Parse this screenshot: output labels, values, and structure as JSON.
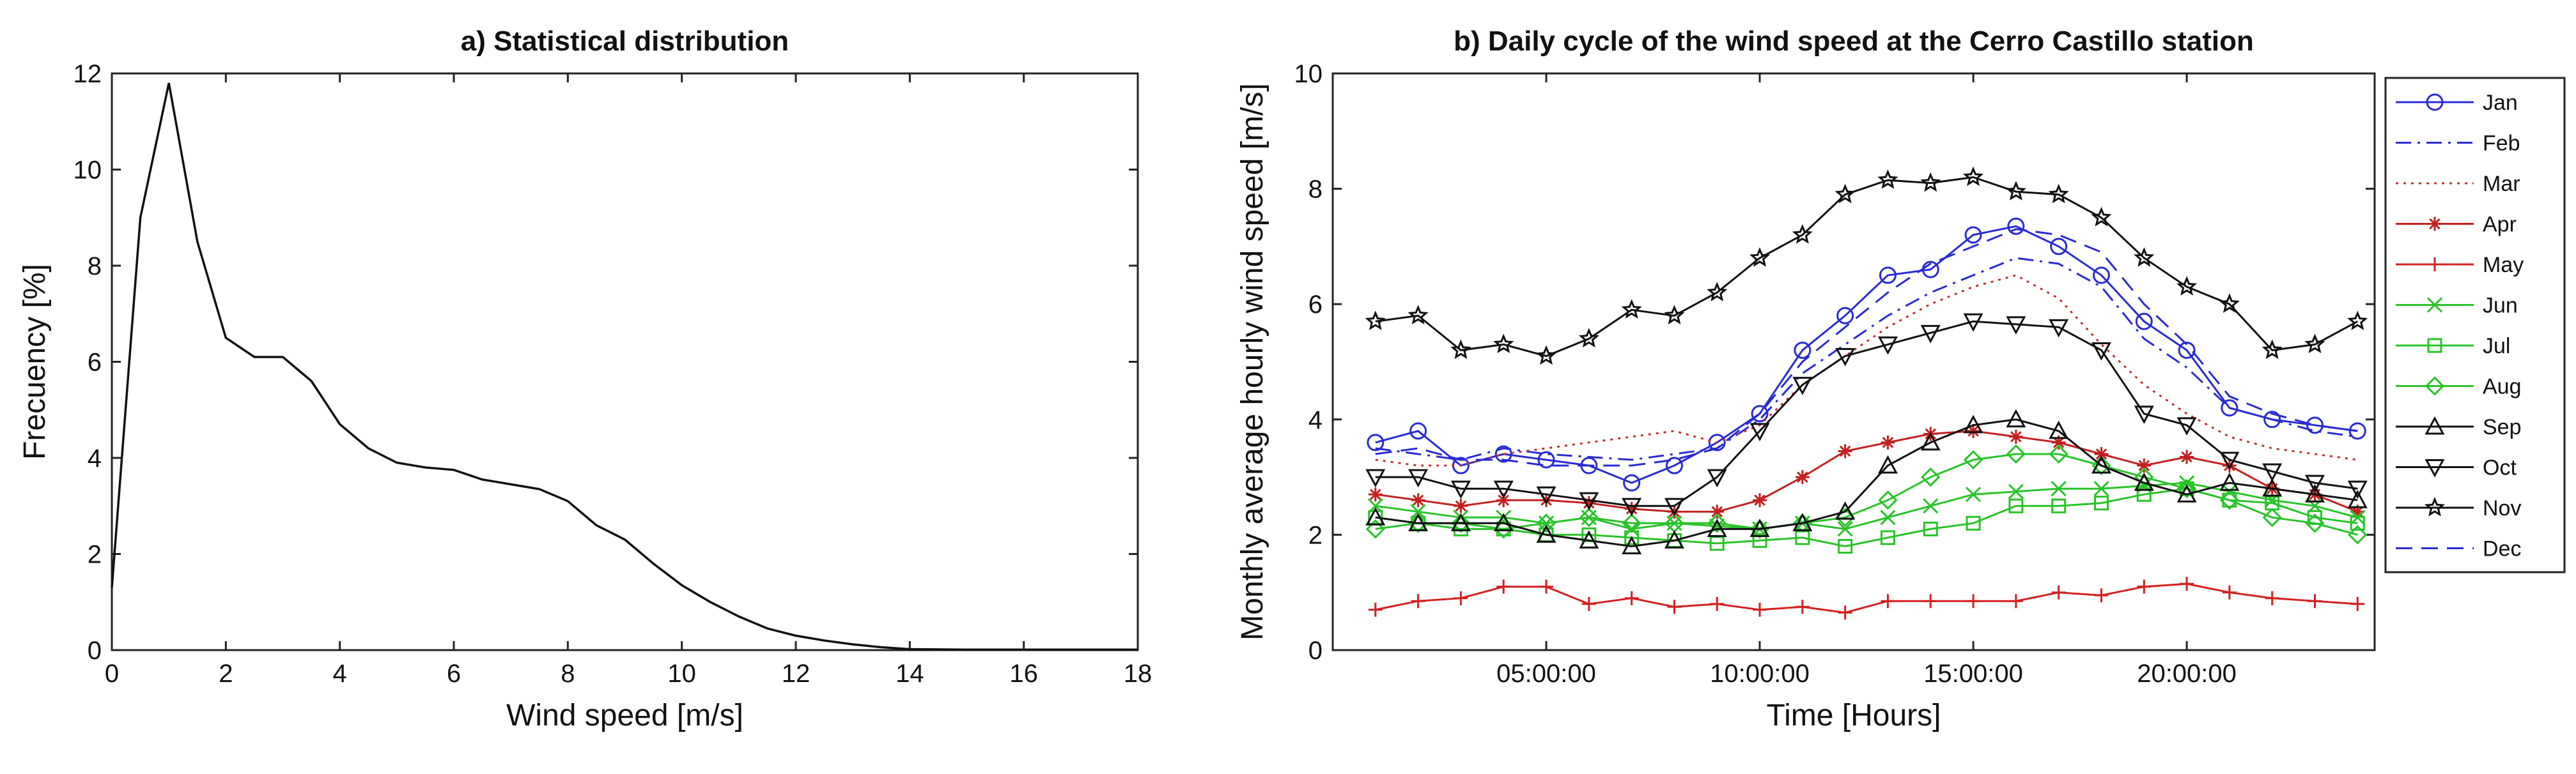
{
  "chart_data": [
    {
      "type": "line",
      "title": "a) Statistical distribution",
      "xlabel": "Wind speed [m/s]",
      "ylabel": "Frecuency [%]",
      "xlim": [
        0,
        18
      ],
      "ylim": [
        0,
        12
      ],
      "xticks": [
        0,
        2,
        4,
        6,
        8,
        10,
        12,
        14,
        16,
        18
      ],
      "yticks": [
        0,
        2,
        4,
        6,
        8,
        10,
        12
      ],
      "grid": false,
      "series": [
        {
          "name": "Frequency",
          "color": "#111111",
          "x": [
            0,
            0.5,
            1,
            1.5,
            2,
            2.5,
            3,
            3.5,
            4,
            4.5,
            5,
            5.5,
            6,
            6.5,
            7,
            7.5,
            8,
            8.5,
            9,
            9.5,
            10,
            10.5,
            11,
            11.5,
            12,
            12.5,
            13,
            13.5,
            14,
            15,
            16,
            17,
            18
          ],
          "y": [
            1.3,
            9.0,
            11.8,
            8.5,
            6.5,
            6.1,
            6.1,
            5.6,
            4.7,
            4.2,
            3.9,
            3.8,
            3.75,
            3.55,
            3.45,
            3.35,
            3.1,
            2.6,
            2.3,
            1.8,
            1.35,
            1.0,
            0.7,
            0.45,
            0.3,
            0.2,
            0.12,
            0.06,
            0.02,
            0.01,
            0.01,
            0.01,
            0.01
          ]
        }
      ]
    },
    {
      "type": "line",
      "title": "b) Daily cycle of the wind speed at the Cerro Castillo station",
      "xlabel": "Time [Hours]",
      "ylabel": "Monthly average hourly wind speed [m/s]",
      "xlim": [
        0,
        24.4
      ],
      "ylim": [
        0,
        10
      ],
      "xticks": [
        5,
        10,
        15,
        20
      ],
      "xtick_labels": [
        "05:00:00",
        "10:00:00",
        "15:00:00",
        "20:00:00"
      ],
      "yticks": [
        0,
        2,
        4,
        6,
        8,
        10
      ],
      "grid": false,
      "legend_position": "outside-right",
      "x": [
        1,
        2,
        3,
        4,
        5,
        6,
        7,
        8,
        9,
        10,
        11,
        12,
        13,
        14,
        15,
        16,
        17,
        18,
        19,
        20,
        21,
        22,
        23,
        24
      ],
      "series": [
        {
          "name": "Jan",
          "color": "#2a2ad6",
          "dash": "solid",
          "marker": "circle",
          "values": [
            3.6,
            3.8,
            3.2,
            3.4,
            3.3,
            3.2,
            2.9,
            3.2,
            3.6,
            4.1,
            5.2,
            5.8,
            6.5,
            6.6,
            7.2,
            7.35,
            7.0,
            6.5,
            5.7,
            5.2,
            4.2,
            4.0,
            3.9,
            3.8
          ]
        },
        {
          "name": "Feb",
          "color": "#2a2ad6",
          "dash": "dashdot",
          "marker": "none",
          "values": [
            3.5,
            3.4,
            3.3,
            3.5,
            3.4,
            3.35,
            3.3,
            3.4,
            3.5,
            4.0,
            4.8,
            5.3,
            5.8,
            6.2,
            6.5,
            6.8,
            6.7,
            6.3,
            5.4,
            4.9,
            4.2,
            4.0,
            3.8,
            3.7
          ]
        },
        {
          "name": "Mar",
          "color": "#c43030",
          "dash": "dot",
          "marker": "none",
          "values": [
            3.3,
            3.2,
            3.2,
            3.4,
            3.5,
            3.6,
            3.7,
            3.8,
            3.6,
            3.9,
            4.6,
            5.1,
            5.6,
            6.0,
            6.3,
            6.5,
            6.1,
            5.3,
            4.6,
            4.1,
            3.7,
            3.5,
            3.4,
            3.3
          ]
        },
        {
          "name": "Apr",
          "color": "#c42020",
          "dash": "solid",
          "marker": "asterisk",
          "values": [
            2.7,
            2.6,
            2.5,
            2.6,
            2.6,
            2.55,
            2.45,
            2.4,
            2.4,
            2.6,
            3.0,
            3.45,
            3.6,
            3.75,
            3.8,
            3.7,
            3.6,
            3.4,
            3.2,
            3.35,
            3.2,
            2.8,
            2.7,
            2.4
          ]
        },
        {
          "name": "May",
          "color": "#d42020",
          "dash": "solid",
          "marker": "plus",
          "values": [
            0.7,
            0.85,
            0.9,
            1.1,
            1.1,
            0.8,
            0.9,
            0.75,
            0.8,
            0.7,
            0.75,
            0.65,
            0.85,
            0.85,
            0.85,
            0.85,
            1.0,
            0.95,
            1.1,
            1.15,
            1.0,
            0.9,
            0.85,
            0.8
          ]
        },
        {
          "name": "Jun",
          "color": "#28c428",
          "dash": "solid",
          "marker": "x",
          "values": [
            2.5,
            2.4,
            2.3,
            2.3,
            2.2,
            2.3,
            2.1,
            2.2,
            2.15,
            2.1,
            2.2,
            2.1,
            2.3,
            2.5,
            2.7,
            2.75,
            2.8,
            2.8,
            2.85,
            2.9,
            2.75,
            2.6,
            2.5,
            2.3
          ]
        },
        {
          "name": "Jul",
          "color": "#28c428",
          "dash": "solid",
          "marker": "square",
          "values": [
            2.3,
            2.2,
            2.1,
            2.1,
            2.0,
            2.0,
            1.95,
            1.9,
            1.85,
            1.9,
            1.95,
            1.8,
            1.95,
            2.1,
            2.2,
            2.5,
            2.5,
            2.55,
            2.7,
            2.8,
            2.6,
            2.55,
            2.3,
            2.2
          ]
        },
        {
          "name": "Aug",
          "color": "#28c428",
          "dash": "solid",
          "marker": "diamond",
          "values": [
            2.1,
            2.2,
            2.2,
            2.1,
            2.2,
            2.3,
            2.2,
            2.2,
            2.2,
            2.1,
            2.2,
            2.3,
            2.6,
            3.0,
            3.3,
            3.4,
            3.4,
            3.2,
            3.0,
            2.8,
            2.6,
            2.3,
            2.2,
            2.0
          ]
        },
        {
          "name": "Sep",
          "color": "#111111",
          "dash": "solid",
          "marker": "triangle-up",
          "values": [
            2.3,
            2.2,
            2.2,
            2.2,
            2.0,
            1.9,
            1.8,
            1.9,
            2.1,
            2.1,
            2.2,
            2.4,
            3.2,
            3.6,
            3.9,
            4.0,
            3.8,
            3.2,
            2.9,
            2.7,
            2.9,
            2.8,
            2.7,
            2.6
          ]
        },
        {
          "name": "Oct",
          "color": "#111111",
          "dash": "solid",
          "marker": "triangle-down",
          "values": [
            3.0,
            3.0,
            2.8,
            2.8,
            2.7,
            2.6,
            2.5,
            2.5,
            3.0,
            3.8,
            4.6,
            5.1,
            5.3,
            5.5,
            5.7,
            5.65,
            5.6,
            5.2,
            4.1,
            3.9,
            3.3,
            3.1,
            2.9,
            2.8
          ]
        },
        {
          "name": "Nov",
          "color": "#111111",
          "dash": "solid",
          "marker": "star",
          "values": [
            5.7,
            5.8,
            5.2,
            5.3,
            5.1,
            5.4,
            5.9,
            5.8,
            6.2,
            6.8,
            7.2,
            7.9,
            8.15,
            8.1,
            8.2,
            7.95,
            7.9,
            7.5,
            6.8,
            6.3,
            6.0,
            5.2,
            5.3,
            5.7
          ]
        },
        {
          "name": "Dec",
          "color": "#2a2ad6",
          "dash": "dash",
          "marker": "none",
          "values": [
            3.4,
            3.5,
            3.3,
            3.3,
            3.2,
            3.2,
            3.2,
            3.3,
            3.5,
            4.1,
            5.0,
            5.6,
            6.2,
            6.7,
            7.0,
            7.3,
            7.2,
            6.9,
            6.0,
            5.3,
            4.4,
            4.1,
            3.9,
            3.8
          ]
        }
      ]
    }
  ]
}
